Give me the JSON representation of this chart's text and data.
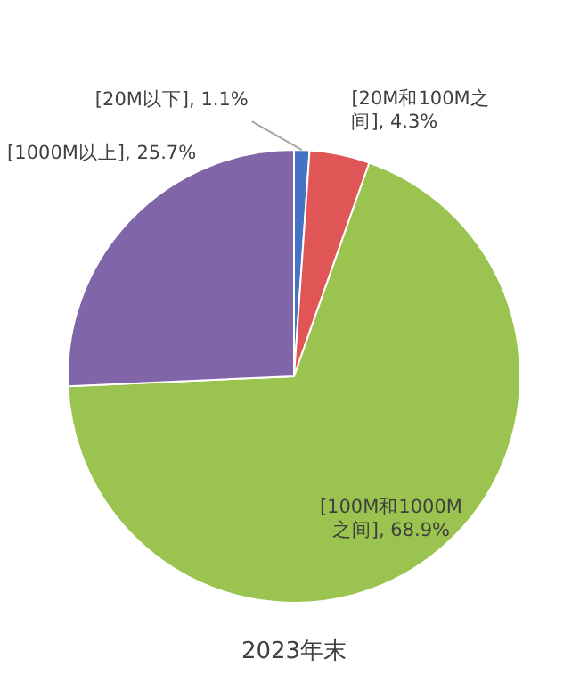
{
  "chart_data": {
    "type": "pie",
    "title": "2023年末",
    "categories": [
      "[20M以下]",
      "[20M和100M之间]",
      "[100M和1000M之间]",
      "[1000M以上]"
    ],
    "values": [
      1.1,
      4.3,
      68.9,
      25.7
    ],
    "colors": [
      "#4472c4",
      "#e05555",
      "#9bc34f",
      "#8066a8"
    ],
    "value_labels": [
      "1.1%",
      "4.3%",
      "68.9%",
      "25.7%"
    ]
  }
}
